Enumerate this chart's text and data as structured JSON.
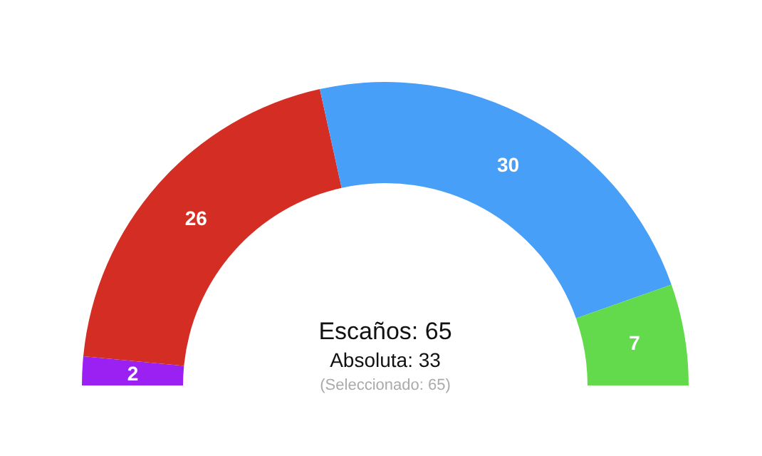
{
  "chart_data": {
    "type": "donut",
    "categories": [
      null,
      null,
      null,
      null
    ],
    "values": [
      2,
      26,
      30,
      7
    ],
    "colors": [
      "#9a21f2",
      "#d42e24",
      "#479ff7",
      "#62da4c"
    ],
    "data_labels": true,
    "annotations": [
      "Escaños: 65",
      "Absoluta: 33",
      "(Seleccionado: 65)"
    ]
  }
}
